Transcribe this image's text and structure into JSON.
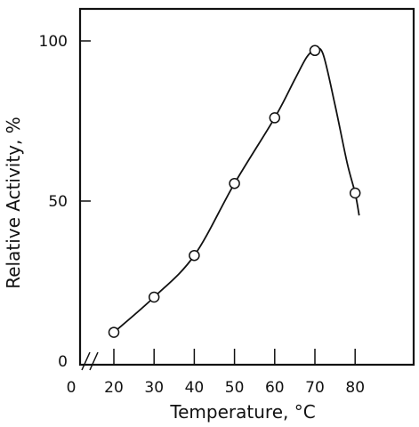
{
  "chart_data": {
    "type": "line",
    "xlabel": "Temperature, °C",
    "ylabel": "Relative Activity, %",
    "xlim": [
      0,
      92
    ],
    "ylim": [
      0,
      110
    ],
    "x_ticks": [
      "0",
      "20",
      "30",
      "40",
      "50",
      "60",
      "70",
      "80"
    ],
    "y_ticks": [
      "0",
      "50",
      "100"
    ],
    "axis_break": "x",
    "series": [
      {
        "points": [
          {
            "x": 20,
            "y": 9
          },
          {
            "x": 30,
            "y": 20
          },
          {
            "x": 40,
            "y": 33
          },
          {
            "x": 50,
            "y": 55.5
          },
          {
            "x": 60,
            "y": 76
          },
          {
            "x": 70,
            "y": 97
          },
          {
            "x": 80,
            "y": 52.5
          }
        ],
        "curve": [
          [
            20,
            9
          ],
          [
            30,
            20
          ],
          [
            40,
            33
          ],
          [
            50,
            55.5
          ],
          [
            60,
            76
          ],
          [
            65,
            88
          ],
          [
            68,
            95
          ],
          [
            70,
            97
          ],
          [
            72,
            96
          ],
          [
            75,
            80
          ],
          [
            78,
            62
          ],
          [
            80,
            52.5
          ],
          [
            81,
            45.5
          ]
        ]
      }
    ],
    "grid": false,
    "legend": "none"
  }
}
